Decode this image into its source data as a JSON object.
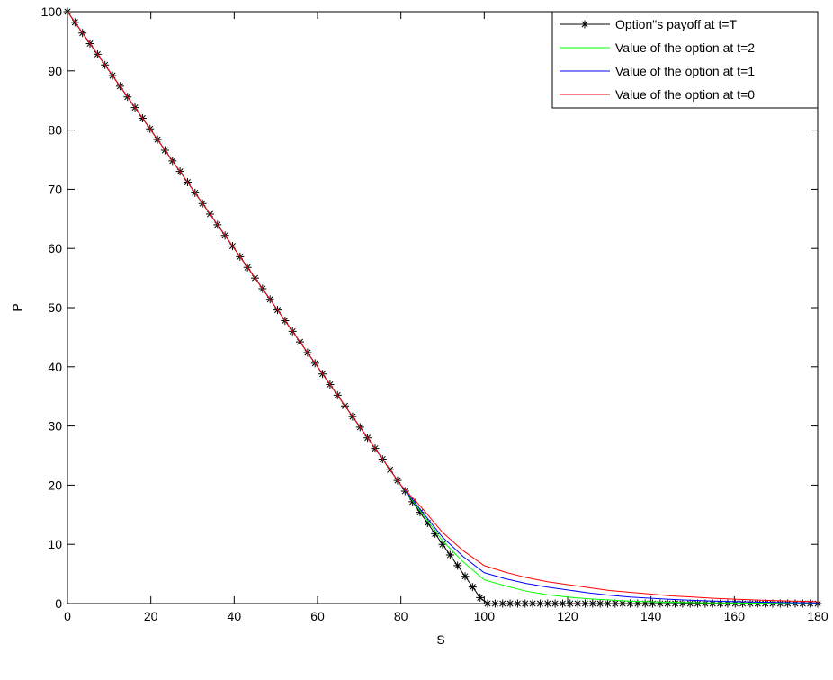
{
  "chart_data": {
    "type": "line",
    "xlabel": "S",
    "ylabel": "P",
    "xlim": [
      0,
      180
    ],
    "ylim": [
      0,
      100
    ],
    "xticks": [
      0,
      20,
      40,
      60,
      80,
      100,
      120,
      140,
      160,
      180
    ],
    "yticks": [
      0,
      10,
      20,
      30,
      40,
      50,
      60,
      70,
      80,
      90,
      100
    ],
    "legend": "upper right",
    "series": [
      {
        "name": "Option\"s payoff at t=T",
        "color": "#000000",
        "marker": "*",
        "x": [
          0,
          1.8,
          3.6,
          5.4,
          7.2,
          9,
          10.8,
          12.6,
          14.4,
          16.2,
          18,
          19.8,
          21.6,
          23.4,
          25.2,
          27,
          28.8,
          30.6,
          32.4,
          34.2,
          36,
          37.8,
          39.6,
          41.4,
          43.2,
          45,
          46.8,
          48.6,
          50.4,
          52.2,
          54,
          55.8,
          57.6,
          59.4,
          61.2,
          63,
          64.8,
          66.6,
          68.4,
          70.2,
          72,
          73.8,
          75.6,
          77.4,
          79.2,
          81,
          82.8,
          84.6,
          86.4,
          88.2,
          90,
          91.8,
          93.6,
          95.4,
          97.2,
          99,
          100.8,
          102.6,
          104.4,
          106.2,
          108,
          109.8,
          111.6,
          113.4,
          115.2,
          117,
          118.8,
          120.6,
          122.4,
          124.2,
          126,
          127.8,
          129.6,
          131.4,
          133.2,
          135,
          136.8,
          138.6,
          140.4,
          142.2,
          144,
          145.8,
          147.6,
          149.4,
          151.2,
          153,
          154.8,
          156.6,
          158.4,
          160.2,
          162,
          163.8,
          165.6,
          167.4,
          169.2,
          171,
          172.8,
          174.6,
          176.4,
          178.2,
          180
        ],
        "values": [
          100,
          98.2,
          96.4,
          94.6,
          92.8,
          91,
          89.2,
          87.4,
          85.6,
          83.8,
          82,
          80.2,
          78.4,
          76.6,
          74.8,
          73,
          71.2,
          69.4,
          67.6,
          65.8,
          64,
          62.2,
          60.4,
          58.6,
          56.8,
          55,
          53.2,
          51.4,
          49.6,
          47.8,
          46,
          44.2,
          42.4,
          40.6,
          38.8,
          37,
          35.2,
          33.4,
          31.6,
          29.8,
          28,
          26.2,
          24.4,
          22.6,
          20.8,
          19,
          17.2,
          15.4,
          13.6,
          11.8,
          10,
          8.2,
          6.4,
          4.6,
          2.8,
          1,
          0,
          0,
          0,
          0,
          0,
          0,
          0,
          0,
          0,
          0,
          0,
          0,
          0,
          0,
          0,
          0,
          0,
          0,
          0,
          0,
          0,
          0,
          0,
          0,
          0,
          0,
          0,
          0,
          0,
          0,
          0,
          0,
          0,
          0,
          0,
          0,
          0,
          0,
          0,
          0,
          0,
          0,
          0,
          0,
          0
        ]
      },
      {
        "name": "Value of the option at t=2",
        "color": "#00ff00",
        "x": [
          0,
          5,
          10,
          15,
          20,
          25,
          30,
          35,
          40,
          45,
          50,
          55,
          60,
          65,
          70,
          75,
          80,
          85,
          90,
          95,
          100,
          105,
          110,
          115,
          120,
          125,
          130,
          135,
          140,
          145,
          150,
          155,
          160,
          165,
          170,
          175,
          180
        ],
        "values": [
          100,
          95,
          90,
          85,
          80,
          75,
          70,
          65,
          60,
          55,
          50,
          45,
          40,
          35,
          30,
          25,
          20,
          15.3,
          10.6,
          7,
          4,
          3,
          2.1,
          1.5,
          1.1,
          0.8,
          0.6,
          0.4,
          0.3,
          0.2,
          0.15,
          0.12,
          0.1,
          0.07,
          0.05,
          0.03,
          0.02
        ]
      },
      {
        "name": "Value of the option at t=1",
        "color": "#0000ff",
        "x": [
          0,
          5,
          10,
          15,
          20,
          25,
          30,
          35,
          40,
          45,
          50,
          55,
          60,
          65,
          70,
          75,
          80,
          85,
          90,
          95,
          100,
          105,
          110,
          115,
          120,
          125,
          130,
          135,
          140,
          145,
          150,
          155,
          160,
          165,
          170,
          175,
          180
        ],
        "values": [
          100,
          95,
          90,
          85,
          80,
          75,
          70,
          65,
          60,
          55,
          50,
          45,
          40,
          35,
          30,
          25,
          20,
          15.6,
          11.2,
          7.9,
          5.2,
          4.2,
          3.4,
          2.8,
          2.3,
          1.8,
          1.4,
          1.1,
          0.9,
          0.7,
          0.55,
          0.42,
          0.33,
          0.25,
          0.19,
          0.14,
          0.1
        ]
      },
      {
        "name": "Value of the option at t=0",
        "color": "#ff0000",
        "x": [
          0,
          5,
          10,
          15,
          20,
          25,
          30,
          35,
          40,
          45,
          50,
          55,
          60,
          65,
          70,
          75,
          80,
          85,
          90,
          95,
          100,
          105,
          110,
          115,
          120,
          125,
          130,
          135,
          140,
          145,
          150,
          155,
          160,
          165,
          170,
          175,
          180
        ],
        "values": [
          100,
          95,
          90,
          85,
          80,
          75,
          70,
          65,
          60,
          55,
          50,
          45,
          40,
          35,
          30,
          25,
          20,
          16.2,
          12,
          8.9,
          6.4,
          5.3,
          4.4,
          3.7,
          3.2,
          2.7,
          2.2,
          1.9,
          1.6,
          1.3,
          1.1,
          0.9,
          0.75,
          0.6,
          0.5,
          0.4,
          0.3
        ]
      }
    ]
  }
}
